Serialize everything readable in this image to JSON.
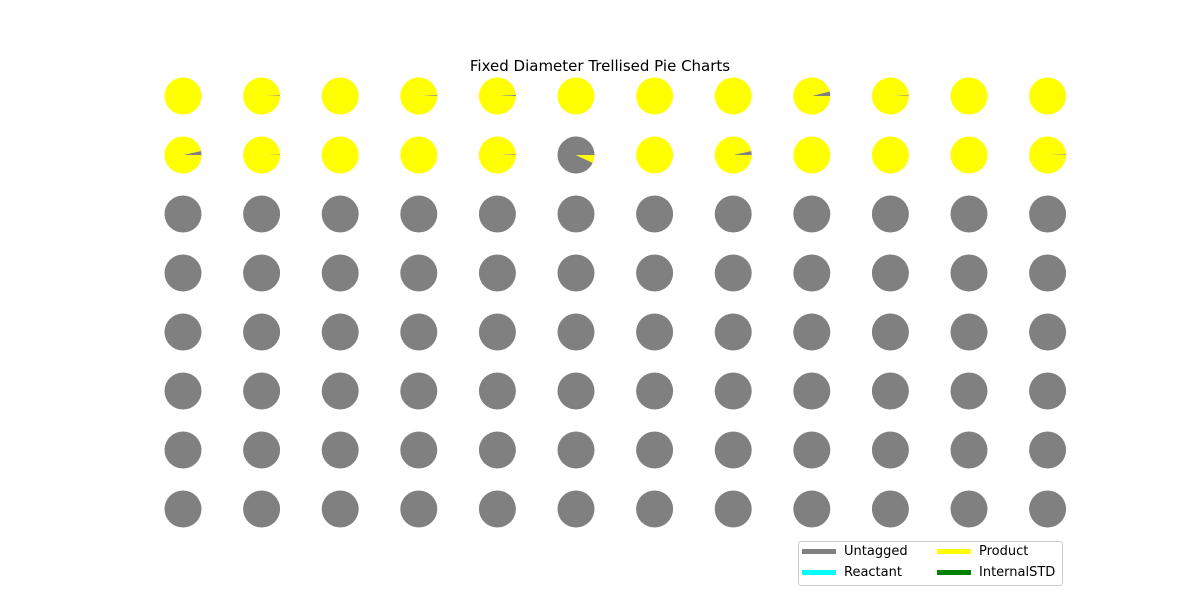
{
  "chart_data": {
    "type": "pie",
    "title": "Fixed Diameter Trellised Pie Charts",
    "layout": {
      "rows": 8,
      "cols": 12
    },
    "series": [
      {
        "name": "Untagged",
        "color": "#808080"
      },
      {
        "name": "Reactant",
        "color": "#00ffff"
      },
      {
        "name": "Product",
        "color": "#ffff00"
      },
      {
        "name": "InternalSTD",
        "color": "#008000"
      }
    ],
    "untagged_fraction": [
      [
        0.0,
        0.005,
        0.0,
        0.008,
        0.01,
        0.0,
        0.0,
        0.0,
        0.04,
        0.006,
        0.0,
        0.0
      ],
      [
        0.035,
        0.004,
        0.0,
        0.0,
        0.006,
        0.93,
        0.0,
        0.035,
        0.0,
        0.0,
        0.0,
        0.006
      ],
      [
        1,
        1,
        1,
        1,
        1,
        1,
        1,
        1,
        1,
        1,
        1,
        1
      ],
      [
        1,
        1,
        1,
        1,
        1,
        1,
        1,
        1,
        1,
        1,
        1,
        1
      ],
      [
        1,
        1,
        1,
        1,
        1,
        1,
        1,
        1,
        1,
        1,
        1,
        1
      ],
      [
        1,
        1,
        1,
        1,
        1,
        1,
        1,
        1,
        1,
        1,
        1,
        1
      ],
      [
        1,
        1,
        1,
        1,
        1,
        1,
        1,
        1,
        1,
        1,
        1,
        1
      ],
      [
        1,
        1,
        1,
        1,
        1,
        1,
        1,
        1,
        1,
        1,
        1,
        1
      ]
    ],
    "legend_position": "lower-right",
    "legend": [
      {
        "label": "Untagged",
        "color": "#808080"
      },
      {
        "label": "Product",
        "color": "#ffff00"
      },
      {
        "label": "Reactant",
        "color": "#00ffff"
      },
      {
        "label": "InternalSTD",
        "color": "#008000"
      }
    ]
  }
}
